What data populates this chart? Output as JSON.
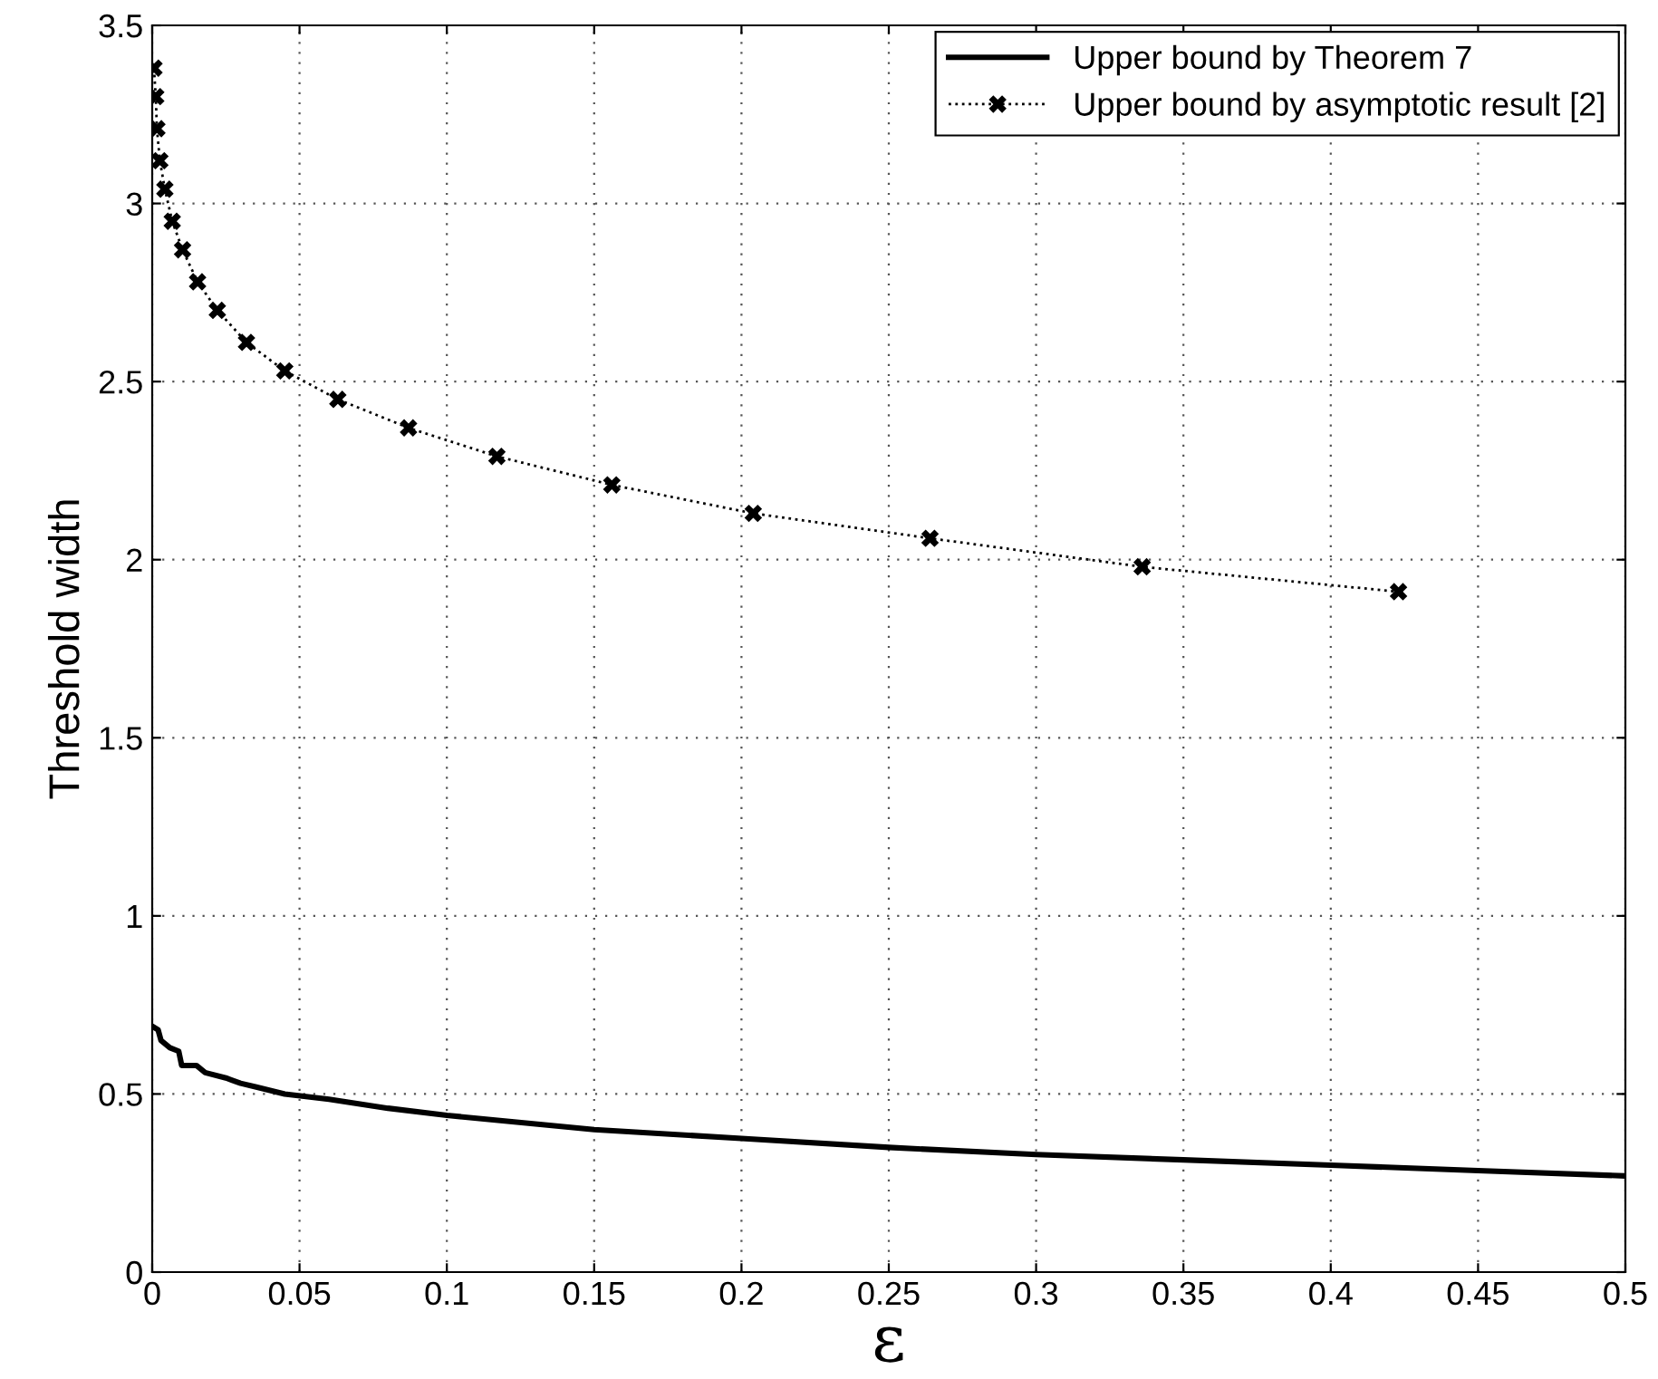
{
  "chart_data": {
    "type": "line",
    "xlabel": "ε",
    "ylabel": "Threshold width",
    "xlim": [
      0,
      0.5
    ],
    "ylim": [
      0,
      3.5
    ],
    "xticks": [
      0,
      0.05,
      0.1,
      0.15,
      0.2,
      0.25,
      0.3,
      0.35,
      0.4,
      0.45,
      0.5
    ],
    "yticks": [
      0,
      0.5,
      1,
      1.5,
      2,
      2.5,
      3,
      3.5
    ],
    "grid": true,
    "legend": "top right",
    "series": [
      {
        "name": "Upper bound by Theorem 7",
        "color": "#000000",
        "line_style": "solid",
        "marker": "none",
        "x": [
          0,
          0.002,
          0.003,
          0.006,
          0.009,
          0.01,
          0.015,
          0.018,
          0.025,
          0.03,
          0.035,
          0.04,
          0.045,
          0.06,
          0.08,
          0.1,
          0.15,
          0.2,
          0.25,
          0.3,
          0.35,
          0.4,
          0.45,
          0.5
        ],
        "values": [
          0.69,
          0.68,
          0.65,
          0.63,
          0.62,
          0.58,
          0.58,
          0.56,
          0.545,
          0.53,
          0.52,
          0.51,
          0.5,
          0.485,
          0.46,
          0.44,
          0.4,
          0.375,
          0.35,
          0.33,
          0.315,
          0.3,
          0.285,
          0.27
        ]
      },
      {
        "name": "Upper bound by asymptotic result [2]",
        "color": "#000000",
        "line_style": "dotted",
        "marker": "cross",
        "x": [
          0.0006,
          0.0012,
          0.0016,
          0.0026,
          0.0043,
          0.0068,
          0.0103,
          0.0154,
          0.0221,
          0.032,
          0.045,
          0.063,
          0.087,
          0.117,
          0.156,
          0.204,
          0.264,
          0.336,
          0.423
        ],
        "values": [
          3.38,
          3.3,
          3.21,
          3.12,
          3.04,
          2.95,
          2.87,
          2.78,
          2.7,
          2.61,
          2.53,
          2.45,
          2.37,
          2.29,
          2.21,
          2.13,
          2.06,
          1.98,
          1.91
        ]
      }
    ]
  }
}
